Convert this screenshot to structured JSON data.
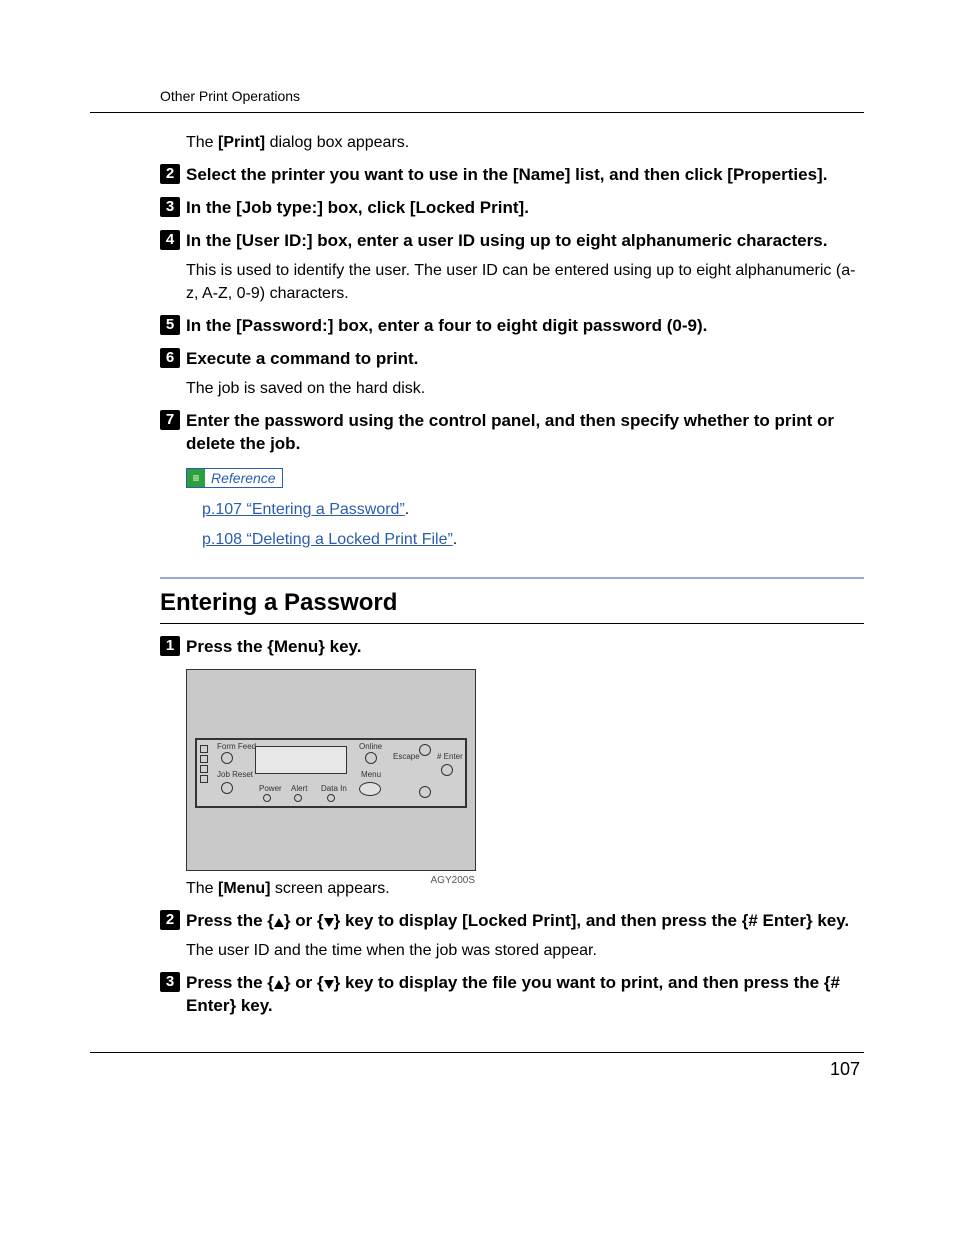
{
  "header": {
    "running": "Other Print Operations"
  },
  "intro1": {
    "pre": "The ",
    "bold": "[Print]",
    "post": " dialog box appears."
  },
  "steps_a": [
    {
      "n": "2",
      "html": "Select the printer you want to use in the <span class='ui'>[Name]</span> list, and then click <span class='ui'>[Properties]</span>."
    },
    {
      "n": "3",
      "html": "In the <span class='ui'>[Job type:]</span> box, click <span class='ui'>[Locked Print]</span>."
    },
    {
      "n": "4",
      "html": "In the <span class='ui'>[User ID:]</span> box, enter a user ID using up to eight alphanumeric characters.",
      "body": "This is used to identify the user. The user ID can be entered using up to eight alphanumeric (a-z, A-Z, 0-9) characters."
    },
    {
      "n": "5",
      "html": "In the <span class='ui'>[Password:]</span> box, enter a four to eight digit password (0-9)."
    },
    {
      "n": "6",
      "html": "Execute a command to print.",
      "body": "The job is saved on the hard disk."
    },
    {
      "n": "7",
      "html": "Enter the password using the control panel, and then specify whether to print or delete the job."
    }
  ],
  "reference": {
    "label": "Reference",
    "links": [
      "p.107 “Entering a Password”",
      "p.108 “Deleting a Locked Print File”"
    ]
  },
  "section": {
    "title": "Entering a Password"
  },
  "steps_b": [
    {
      "n": "1",
      "html": "Press the <span class='kbd-brace'>{</span><span class='ui'>Menu</span><span class='kbd-brace'>}</span> key."
    },
    {
      "n": "2",
      "html": "Press the <span class='kbd-brace'>{</span><span class='tri-up'></span><span class='kbd-brace'>}</span> or <span class='kbd-brace'>{</span><span class='tri-down'></span><span class='kbd-brace'>}</span> key to display <span class='ui'>[Locked Print]</span>, and then press the <span class='kbd-brace'>{</span><span class='ui'># Enter</span><span class='kbd-brace'>}</span> key.",
      "body": "The user ID and the time when the job was stored appear."
    },
    {
      "n": "3",
      "html": "Press the <span class='kbd-brace'>{</span><span class='tri-up'></span><span class='kbd-brace'>}</span> or <span class='kbd-brace'>{</span><span class='tri-down'></span><span class='kbd-brace'>}</span> key to display the file you want to print, and then press the <span class='kbd-brace'>{</span><span class='ui'># Enter</span><span class='kbd-brace'>}</span> key."
    }
  ],
  "panel": {
    "labels": {
      "form_feed": "Form Feed",
      "job_reset": "Job Reset",
      "power": "Power",
      "alert": "Alert",
      "data_in": "Data In",
      "online": "Online",
      "menu": "Menu",
      "escape": "Escape",
      "enter": "# Enter"
    },
    "image_id": "AGY200S"
  },
  "after_panel": {
    "pre": "The ",
    "bold": "[Menu]",
    "post": " screen appears."
  },
  "page_number": "107",
  "colors": {
    "link": "#2a5db0",
    "sep": "#9aa6d8",
    "ref_icon": "#2aa03a",
    "panel_bg": "#c9c9c9"
  }
}
